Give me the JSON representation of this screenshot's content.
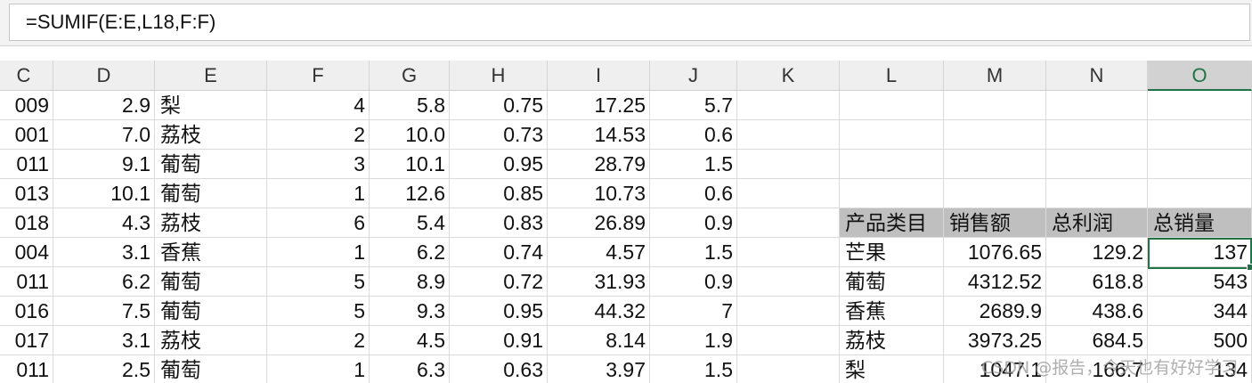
{
  "formula_bar": {
    "formula": "=SUMIF(E:E,L18,F:F)"
  },
  "columns": [
    "C",
    "D",
    "E",
    "F",
    "G",
    "H",
    "I",
    "J",
    "K",
    "L",
    "M",
    "N",
    "O"
  ],
  "active_column": "O",
  "rows": [
    {
      "c": "009",
      "d": "2.9",
      "e": "梨",
      "f": "4",
      "g": "5.8",
      "h": "0.75",
      "i": "17.25",
      "j": "5.7"
    },
    {
      "c": "001",
      "d": "7.0",
      "e": "荔枝",
      "f": "2",
      "g": "10.0",
      "h": "0.73",
      "i": "14.53",
      "j": "0.6"
    },
    {
      "c": "011",
      "d": "9.1",
      "e": "葡萄",
      "f": "3",
      "g": "10.1",
      "h": "0.95",
      "i": "28.79",
      "j": "1.5"
    },
    {
      "c": "013",
      "d": "10.1",
      "e": "葡萄",
      "f": "1",
      "g": "12.6",
      "h": "0.85",
      "i": "10.73",
      "j": "0.6"
    },
    {
      "c": "018",
      "d": "4.3",
      "e": "荔枝",
      "f": "6",
      "g": "5.4",
      "h": "0.83",
      "i": "26.89",
      "j": "0.9"
    },
    {
      "c": "004",
      "d": "3.1",
      "e": "香蕉",
      "f": "1",
      "g": "6.2",
      "h": "0.74",
      "i": "4.57",
      "j": "1.5"
    },
    {
      "c": "011",
      "d": "6.2",
      "e": "葡萄",
      "f": "5",
      "g": "8.9",
      "h": "0.72",
      "i": "31.93",
      "j": "0.9"
    },
    {
      "c": "016",
      "d": "7.5",
      "e": "葡萄",
      "f": "5",
      "g": "9.3",
      "h": "0.95",
      "i": "44.32",
      "j": "7"
    },
    {
      "c": "017",
      "d": "3.1",
      "e": "荔枝",
      "f": "2",
      "g": "4.5",
      "h": "0.91",
      "i": "8.14",
      "j": "1.9"
    },
    {
      "c": "011",
      "d": "2.5",
      "e": "葡萄",
      "f": "1",
      "g": "6.3",
      "h": "0.63",
      "i": "3.97",
      "j": "1.5"
    }
  ],
  "summary": {
    "headers": [
      "产品类目",
      "销售额",
      "总利润",
      "总销量"
    ],
    "rows": [
      {
        "category": "芒果",
        "sales": "1076.65",
        "profit": "129.2",
        "qty": "137"
      },
      {
        "category": "葡萄",
        "sales": "4312.52",
        "profit": "618.8",
        "qty": "543"
      },
      {
        "category": "香蕉",
        "sales": "2689.9",
        "profit": "438.6",
        "qty": "344"
      },
      {
        "category": "荔枝",
        "sales": "3973.25",
        "profit": "684.5",
        "qty": "500"
      },
      {
        "category": "梨",
        "sales": "1047.1",
        "profit": "166.7",
        "qty": "134"
      }
    ]
  },
  "watermark": "CSDN @报告，今天也有好好学习",
  "colors": {
    "accent": "#217346",
    "header_fill": "#bfbfbf"
  }
}
